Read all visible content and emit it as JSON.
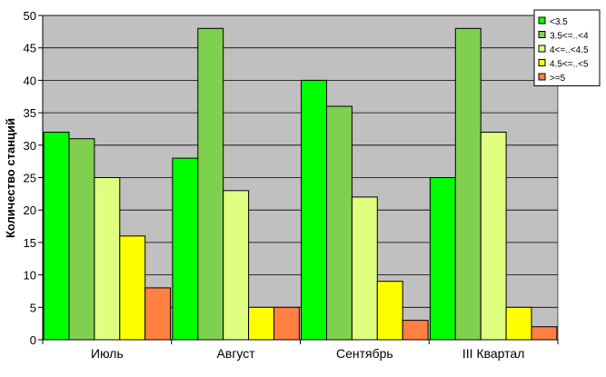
{
  "chart_data": {
    "type": "bar",
    "title": "",
    "xlabel": "",
    "ylabel": "Количество станций",
    "categories": [
      "Июль",
      "Август",
      "Сентябрь",
      "III Квартал"
    ],
    "series": [
      {
        "name": "<3.5",
        "color": "#00ff00",
        "values": [
          32,
          28,
          40,
          25
        ]
      },
      {
        "name": "3.5<=..<4",
        "color": "#80d050",
        "values": [
          31,
          48,
          36,
          48
        ]
      },
      {
        "name": "4<=..<4.5",
        "color": "#e0ff80",
        "values": [
          25,
          23,
          22,
          32
        ]
      },
      {
        "name": "4.5<=..<5",
        "color": "#ffff00",
        "values": [
          16,
          5,
          9,
          5
        ]
      },
      {
        "name": ">=5",
        "color": "#ff8040",
        "values": [
          8,
          5,
          3,
          2
        ]
      }
    ],
    "ylim": [
      0,
      50
    ],
    "yticks": [
      0,
      5,
      10,
      15,
      20,
      25,
      30,
      35,
      40,
      45,
      50
    ],
    "grid": true,
    "legend_position": "top-right",
    "plot_background": "#c0c0c0"
  }
}
